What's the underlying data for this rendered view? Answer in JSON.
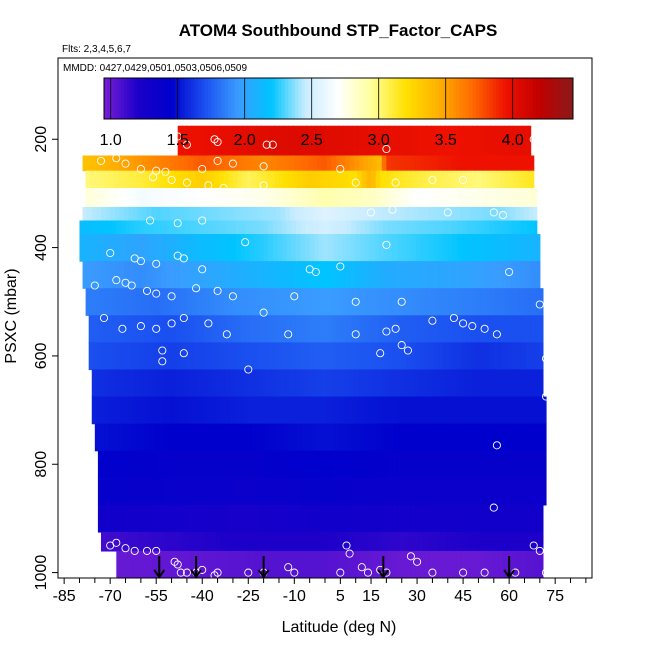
{
  "chart_data": {
    "type": "heatmap",
    "title": "ATOM4 Southbound STP_Factor_CAPS",
    "flights_note": "Flts: 2,3,4,5,6,7",
    "dates_note": "MMDD: 0427,0429,0501,0503,0506,0509",
    "xlabel": "Latitude (deg N)",
    "ylabel": "PSXC (mbar)",
    "xlim": [
      -87,
      87
    ],
    "ylim": [
      1010,
      50
    ],
    "x_ticks": [
      -85,
      -70,
      -55,
      -40,
      -25,
      -10,
      5,
      15,
      30,
      45,
      60,
      75
    ],
    "x_tick_labels": [
      "-85",
      "-70",
      "-55",
      "-40",
      "-25",
      "-10",
      "5",
      "15",
      "30",
      "45",
      "60",
      "75"
    ],
    "y_ticks": [
      200,
      400,
      600,
      800,
      1000
    ],
    "y_tick_labels": [
      "200",
      "400",
      "600",
      "800",
      "1000"
    ],
    "colorbar": {
      "min": 0.95,
      "max": 4.45,
      "ticks": [
        1.0,
        1.5,
        2.0,
        2.5,
        3.0,
        3.5,
        4.0
      ],
      "tick_labels": [
        "1.0",
        "1.5",
        "2.0",
        "2.5",
        "3.0",
        "3.5",
        "4.0"
      ],
      "stops": [
        "#7a1fd6",
        "#1c00c9",
        "#0000cc",
        "#1a4ff0",
        "#3a9cff",
        "#00c4ff",
        "#c8ecff",
        "#ffffff",
        "#ffff99",
        "#ffe000",
        "#ffb000",
        "#ff6a00",
        "#ee1100",
        "#c00000",
        "#8b1a1a"
      ]
    },
    "bands": [
      {
        "p_top": 175,
        "p_bot": 230,
        "x_start": -48,
        "x_end": 67,
        "values": [
          [
            -48,
            3.95
          ],
          [
            -30,
            4.0
          ],
          [
            -10,
            4.05
          ],
          [
            15,
            4.0
          ],
          [
            40,
            3.95
          ],
          [
            67,
            4.0
          ]
        ]
      },
      {
        "p_top": 230,
        "p_bot": 258,
        "x_start": -79,
        "x_end": 68,
        "values": [
          [
            -79,
            3.35
          ],
          [
            -60,
            3.55
          ],
          [
            -40,
            3.75
          ],
          [
            -20,
            3.6
          ],
          [
            0,
            3.75
          ],
          [
            18,
            3.4
          ],
          [
            20,
            3.85
          ],
          [
            45,
            3.95
          ],
          [
            68,
            3.95
          ]
        ]
      },
      {
        "p_top": 258,
        "p_bot": 290,
        "x_start": -78,
        "x_end": 68,
        "values": [
          [
            -78,
            3.0
          ],
          [
            -60,
            3.1
          ],
          [
            -40,
            3.3
          ],
          [
            -25,
            3.05
          ],
          [
            -5,
            3.3
          ],
          [
            10,
            3.2
          ],
          [
            15,
            3.45
          ],
          [
            18,
            3.2
          ],
          [
            30,
            3.1
          ],
          [
            50,
            3.0
          ],
          [
            68,
            3.15
          ]
        ]
      },
      {
        "p_top": 290,
        "p_bot": 325,
        "x_start": -78,
        "x_end": 69,
        "values": [
          [
            -78,
            2.8
          ],
          [
            -60,
            2.65
          ],
          [
            -40,
            2.7
          ],
          [
            -20,
            2.75
          ],
          [
            0,
            2.9
          ],
          [
            15,
            2.85
          ],
          [
            30,
            2.7
          ],
          [
            50,
            2.75
          ],
          [
            69,
            2.8
          ]
        ]
      },
      {
        "p_top": 325,
        "p_bot": 350,
        "x_start": -79,
        "x_end": 69,
        "values": [
          [
            -79,
            2.45
          ],
          [
            -55,
            2.3
          ],
          [
            -35,
            2.35
          ],
          [
            -15,
            2.4
          ],
          [
            0,
            2.55
          ],
          [
            15,
            2.45
          ],
          [
            35,
            2.4
          ],
          [
            55,
            2.35
          ],
          [
            69,
            2.45
          ]
        ]
      },
      {
        "p_top": 350,
        "p_bot": 375,
        "x_start": -80,
        "x_end": 69,
        "values": [
          [
            -80,
            2.15
          ],
          [
            -60,
            2.25
          ],
          [
            -40,
            2.3
          ],
          [
            -20,
            2.35
          ],
          [
            0,
            2.5
          ],
          [
            20,
            2.35
          ],
          [
            40,
            2.3
          ],
          [
            69,
            2.2
          ]
        ]
      },
      {
        "p_top": 375,
        "p_bot": 425,
        "x_start": -80,
        "x_end": 70,
        "values": [
          [
            -80,
            2.1
          ],
          [
            -60,
            2.0
          ],
          [
            -40,
            2.15
          ],
          [
            -20,
            2.25
          ],
          [
            0,
            2.4
          ],
          [
            20,
            2.3
          ],
          [
            45,
            2.2
          ],
          [
            70,
            2.1
          ]
        ]
      },
      {
        "p_top": 425,
        "p_bot": 475,
        "x_start": -79,
        "x_end": 70,
        "values": [
          [
            -79,
            1.95
          ],
          [
            -60,
            1.9
          ],
          [
            -40,
            2.0
          ],
          [
            -20,
            2.1
          ],
          [
            0,
            2.2
          ],
          [
            20,
            2.05
          ],
          [
            45,
            2.0
          ],
          [
            70,
            1.9
          ]
        ]
      },
      {
        "p_top": 475,
        "p_bot": 525,
        "x_start": -78,
        "x_end": 71,
        "values": [
          [
            -78,
            1.85
          ],
          [
            -55,
            1.8
          ],
          [
            -30,
            1.9
          ],
          [
            0,
            1.95
          ],
          [
            25,
            1.9
          ],
          [
            50,
            1.85
          ],
          [
            71,
            1.8
          ]
        ]
      },
      {
        "p_top": 525,
        "p_bot": 575,
        "x_start": -77,
        "x_end": 71,
        "values": [
          [
            -77,
            1.75
          ],
          [
            -50,
            1.7
          ],
          [
            -25,
            1.8
          ],
          [
            0,
            1.85
          ],
          [
            25,
            1.75
          ],
          [
            50,
            1.7
          ],
          [
            71,
            1.7
          ]
        ]
      },
      {
        "p_top": 575,
        "p_bot": 625,
        "x_start": -77,
        "x_end": 71,
        "values": [
          [
            -77,
            1.7
          ],
          [
            -50,
            1.65
          ],
          [
            -25,
            1.7
          ],
          [
            0,
            1.75
          ],
          [
            25,
            1.7
          ],
          [
            50,
            1.6
          ],
          [
            71,
            1.65
          ]
        ]
      },
      {
        "p_top": 625,
        "p_bot": 675,
        "x_start": -76,
        "x_end": 71,
        "values": [
          [
            -76,
            1.6
          ],
          [
            -50,
            1.55
          ],
          [
            -25,
            1.6
          ],
          [
            0,
            1.65
          ],
          [
            25,
            1.6
          ],
          [
            50,
            1.55
          ],
          [
            71,
            1.55
          ]
        ]
      },
      {
        "p_top": 675,
        "p_bot": 725,
        "x_start": -76,
        "x_end": 72,
        "values": [
          [
            -76,
            1.55
          ],
          [
            -50,
            1.5
          ],
          [
            -25,
            1.55
          ],
          [
            0,
            1.55
          ],
          [
            25,
            1.5
          ],
          [
            50,
            1.5
          ],
          [
            72,
            1.5
          ]
        ]
      },
      {
        "p_top": 725,
        "p_bot": 775,
        "x_start": -75,
        "x_end": 72,
        "values": [
          [
            -75,
            1.5
          ],
          [
            -50,
            1.45
          ],
          [
            -25,
            1.45
          ],
          [
            0,
            1.5
          ],
          [
            25,
            1.45
          ],
          [
            50,
            1.45
          ],
          [
            72,
            1.45
          ]
        ]
      },
      {
        "p_top": 775,
        "p_bot": 825,
        "x_start": -74,
        "x_end": 72,
        "values": [
          [
            -74,
            1.45
          ],
          [
            -50,
            1.4
          ],
          [
            -25,
            1.4
          ],
          [
            0,
            1.45
          ],
          [
            25,
            1.4
          ],
          [
            50,
            1.4
          ],
          [
            72,
            1.4
          ]
        ]
      },
      {
        "p_top": 825,
        "p_bot": 875,
        "x_start": -74,
        "x_end": 72,
        "values": [
          [
            -74,
            1.4
          ],
          [
            -50,
            1.38
          ],
          [
            -25,
            1.35
          ],
          [
            0,
            1.4
          ],
          [
            25,
            1.35
          ],
          [
            50,
            1.35
          ],
          [
            72,
            1.35
          ]
        ]
      },
      {
        "p_top": 875,
        "p_bot": 925,
        "x_start": -74,
        "x_end": 71,
        "values": [
          [
            -74,
            1.3
          ],
          [
            -50,
            1.28
          ],
          [
            -25,
            1.25
          ],
          [
            0,
            1.3
          ],
          [
            25,
            1.28
          ],
          [
            50,
            1.3
          ],
          [
            71,
            1.3
          ]
        ]
      },
      {
        "p_top": 925,
        "p_bot": 960,
        "x_start": -73,
        "x_end": 71,
        "values": [
          [
            -73,
            1.1
          ],
          [
            -55,
            1.15
          ],
          [
            -30,
            1.2
          ],
          [
            0,
            1.2
          ],
          [
            25,
            1.15
          ],
          [
            50,
            1.2
          ],
          [
            71,
            1.2
          ]
        ]
      },
      {
        "p_top": 960,
        "p_bot": 1008,
        "x_start": -68,
        "x_end": 71,
        "values": [
          [
            -68,
            1.0
          ],
          [
            -45,
            1.02
          ],
          [
            -20,
            1.05
          ],
          [
            0,
            1.05
          ],
          [
            25,
            1.0
          ],
          [
            50,
            1.0
          ],
          [
            71,
            1.05
          ]
        ]
      }
    ],
    "obs_points": [
      [
        -48,
        195
      ],
      [
        -45,
        210
      ],
      [
        -36,
        200
      ],
      [
        -35,
        205
      ],
      [
        -19,
        210
      ],
      [
        -17,
        210
      ],
      [
        20,
        218
      ],
      [
        68,
        200
      ],
      [
        70,
        200
      ],
      [
        -73,
        240
      ],
      [
        -68,
        235
      ],
      [
        -65,
        245
      ],
      [
        -60,
        255
      ],
      [
        -55,
        258
      ],
      [
        -52,
        260
      ],
      [
        -40,
        255
      ],
      [
        -35,
        240
      ],
      [
        -30,
        245
      ],
      [
        -20,
        250
      ],
      [
        5,
        255
      ],
      [
        -56,
        270
      ],
      [
        -50,
        275
      ],
      [
        -45,
        280
      ],
      [
        -38,
        285
      ],
      [
        -33,
        290
      ],
      [
        -20,
        285
      ],
      [
        10,
        280
      ],
      [
        23,
        280
      ],
      [
        35,
        275
      ],
      [
        45,
        275
      ],
      [
        -57,
        350
      ],
      [
        -48,
        355
      ],
      [
        -40,
        350
      ],
      [
        15,
        335
      ],
      [
        22,
        330
      ],
      [
        40,
        335
      ],
      [
        55,
        335
      ],
      [
        58,
        340
      ],
      [
        -70,
        410
      ],
      [
        -62,
        420
      ],
      [
        -60,
        425
      ],
      [
        -55,
        430
      ],
      [
        -48,
        415
      ],
      [
        -46,
        420
      ],
      [
        -40,
        440
      ],
      [
        -26,
        390
      ],
      [
        5,
        435
      ],
      [
        -3,
        445
      ],
      [
        -5,
        440
      ],
      [
        20,
        395
      ],
      [
        -75,
        470
      ],
      [
        -68,
        460
      ],
      [
        -65,
        465
      ],
      [
        -63,
        470
      ],
      [
        -58,
        480
      ],
      [
        -55,
        485
      ],
      [
        -50,
        490
      ],
      [
        -42,
        475
      ],
      [
        -35,
        480
      ],
      [
        -30,
        490
      ],
      [
        -20,
        520
      ],
      [
        -10,
        490
      ],
      [
        10,
        500
      ],
      [
        25,
        500
      ],
      [
        60,
        445
      ],
      [
        -72,
        530
      ],
      [
        -66,
        550
      ],
      [
        -60,
        545
      ],
      [
        -55,
        550
      ],
      [
        -50,
        540
      ],
      [
        -46,
        530
      ],
      [
        -38,
        540
      ],
      [
        -32,
        560
      ],
      [
        10,
        560
      ],
      [
        20,
        555
      ],
      [
        23,
        550
      ],
      [
        35,
        535
      ],
      [
        42,
        530
      ],
      [
        45,
        540
      ],
      [
        48,
        545
      ],
      [
        52,
        550
      ],
      [
        56,
        560
      ],
      [
        70,
        505
      ],
      [
        -53,
        590
      ],
      [
        -53,
        610
      ],
      [
        -46,
        595
      ],
      [
        -25,
        625
      ],
      [
        -12,
        560
      ],
      [
        18,
        595
      ],
      [
        25,
        580
      ],
      [
        27,
        590
      ],
      [
        72,
        605
      ],
      [
        72,
        675
      ],
      [
        56,
        765
      ],
      [
        55,
        880
      ],
      [
        -70,
        950
      ],
      [
        -68,
        945
      ],
      [
        -65,
        955
      ],
      [
        -62,
        960
      ],
      [
        -58,
        960
      ],
      [
        -55,
        960
      ],
      [
        -49,
        980
      ],
      [
        -47,
        1000
      ],
      [
        -45,
        1000
      ],
      [
        -42,
        1000
      ],
      [
        -40,
        995
      ],
      [
        -35,
        1000
      ],
      [
        -25,
        1000
      ],
      [
        -20,
        1000
      ],
      [
        -10,
        1000
      ],
      [
        5,
        1000
      ],
      [
        12,
        990
      ],
      [
        14,
        1000
      ],
      [
        18,
        995
      ],
      [
        20,
        1000
      ],
      [
        28,
        970
      ],
      [
        30,
        980
      ],
      [
        35,
        1000
      ],
      [
        45,
        1000
      ],
      [
        52,
        1000
      ],
      [
        62,
        1000
      ],
      [
        68,
        950
      ],
      [
        70,
        960
      ],
      [
        72,
        1000
      ],
      [
        7,
        950
      ],
      [
        8,
        965
      ],
      [
        -12,
        990
      ],
      [
        -36,
        1005
      ],
      [
        -48,
        985
      ]
    ],
    "flight_arrows": [
      -54,
      -42,
      -20,
      19,
      60
    ]
  }
}
